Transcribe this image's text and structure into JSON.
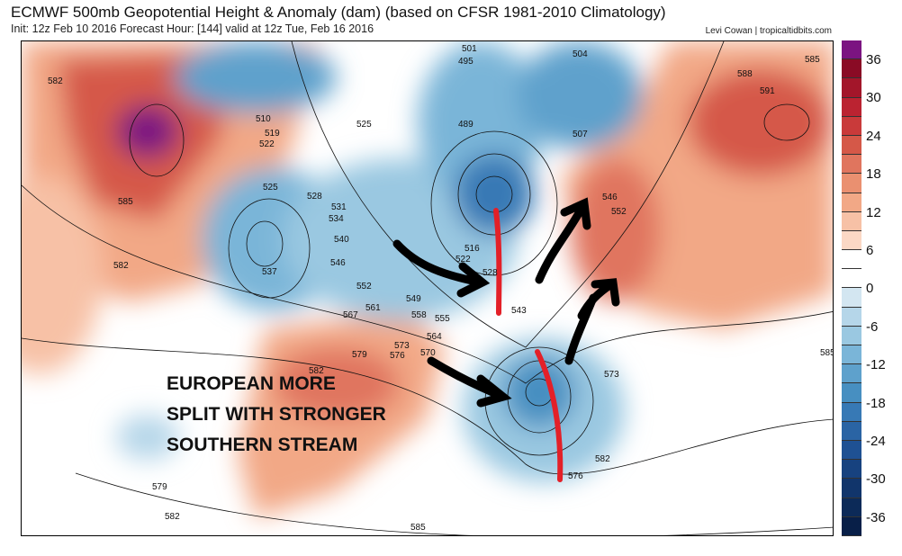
{
  "header": {
    "title": "ECMWF 500mb Geopotential Height & Anomaly (dam) (based on CFSR 1981-2010 Climatology)",
    "subtitle": "Init: 12z Feb 10 2016   Forecast Hour: [144]   valid at 12z Tue, Feb 16 2016",
    "credit": "Levi Cowan | tropicaltidbits.com"
  },
  "colorbar": {
    "labels": [
      "36",
      "30",
      "24",
      "18",
      "12",
      "6",
      "0",
      "-6",
      "-12",
      "-18",
      "-24",
      "-30",
      "-36"
    ],
    "colors": [
      "#7b1481",
      "#8a0b25",
      "#a3162a",
      "#bb2331",
      "#c93a3a",
      "#d55848",
      "#e0755e",
      "#ea9070",
      "#f2a886",
      "#f7c1a6",
      "#fbd8c5",
      "#ffffff",
      "#ffffff",
      "#d3e6f1",
      "#b5d6e9",
      "#9ac8e1",
      "#7ab5d8",
      "#5ea1cc",
      "#478fc1",
      "#3779b5",
      "#2a64a4",
      "#1f5193",
      "#17427f",
      "#11356b",
      "#0c2a58",
      "#081f48"
    ]
  },
  "annotation": {
    "lines": [
      "EUROPEAN MORE",
      "SPLIT WITH STRONGER",
      "SOUTHERN STREAM"
    ]
  },
  "contour_labels": [
    "582",
    "585",
    "582",
    "510",
    "519",
    "522",
    "525",
    "528",
    "531",
    "534",
    "540",
    "537",
    "546",
    "552",
    "549",
    "561",
    "567",
    "558",
    "555",
    "564",
    "570",
    "573",
    "576",
    "579",
    "582",
    "579",
    "582",
    "585",
    "576",
    "582",
    "573",
    "585",
    "516",
    "522",
    "528",
    "543",
    "546",
    "552",
    "525",
    "501",
    "495",
    "489",
    "507",
    "504",
    "588",
    "591",
    "585"
  ]
}
